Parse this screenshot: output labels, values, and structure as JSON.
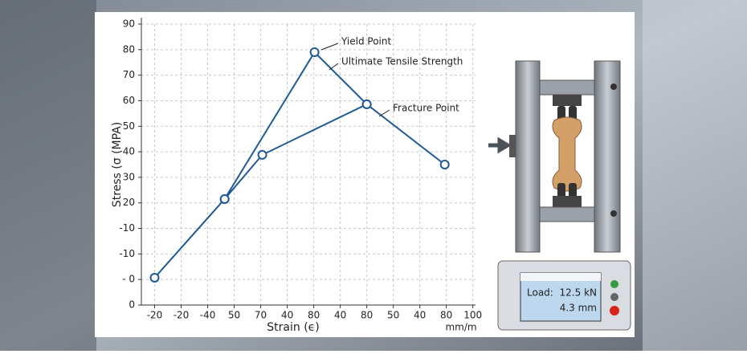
{
  "chart_data": {
    "type": "line",
    "xlabel": "Strain (ϵ)",
    "ylabel": "Stress (σ (MPA)",
    "x_unit": "mm/m",
    "series": [
      {
        "color": "#1f5a96",
        "x": [
          0,
          26.4,
          60.3,
          80,
          109.4
        ],
        "values": [
          10.7,
          41.5,
          99,
          78.6,
          55
        ]
      },
      {
        "color": "#1f5a96",
        "x": [
          26.4,
          40.6,
          80
        ],
        "values": [
          41.5,
          58.8,
          78.6
        ]
      }
    ],
    "annotations": [
      "Yield Point",
      "Ultimate Tensile Strength",
      "Fracture Point"
    ],
    "xlim": [
      -5,
      121
    ],
    "xticks": [
      {
        "value": 0,
        "label": "-20"
      },
      {
        "value": 10,
        "label": "-20"
      },
      {
        "value": 20,
        "label": "-40"
      },
      {
        "value": 30,
        "label": "50"
      },
      {
        "value": 40,
        "label": "70"
      },
      {
        "value": 50,
        "label": "40"
      },
      {
        "value": 60,
        "label": "80"
      },
      {
        "value": 70,
        "label": "40"
      },
      {
        "value": 80,
        "label": "80"
      },
      {
        "value": 90,
        "label": "50"
      },
      {
        "value": 100,
        "label": "40"
      },
      {
        "value": 110,
        "label": "80"
      },
      {
        "value": 120,
        "label": "100"
      }
    ],
    "ylim": [
      0,
      110
    ],
    "yticks": [
      0,
      {
        "value": 10,
        "label": "- 0"
      },
      {
        "value": 20,
        "label": "-10"
      },
      {
        "value": 30,
        "label": "-10"
      },
      {
        "value": 40,
        "label": "20"
      },
      {
        "value": 50,
        "label": "30"
      },
      {
        "value": 60,
        "label": "40"
      },
      {
        "value": 70,
        "label": "50"
      },
      {
        "value": 80,
        "label": "60"
      },
      {
        "value": 90,
        "label": "70"
      },
      {
        "value": 100,
        "label": "80"
      },
      {
        "value": 110,
        "label": "90"
      }
    ],
    "grid": true
  },
  "device": {
    "load_label": "Load:",
    "load": "12.5 kN",
    "extension": "4.3 mm"
  }
}
